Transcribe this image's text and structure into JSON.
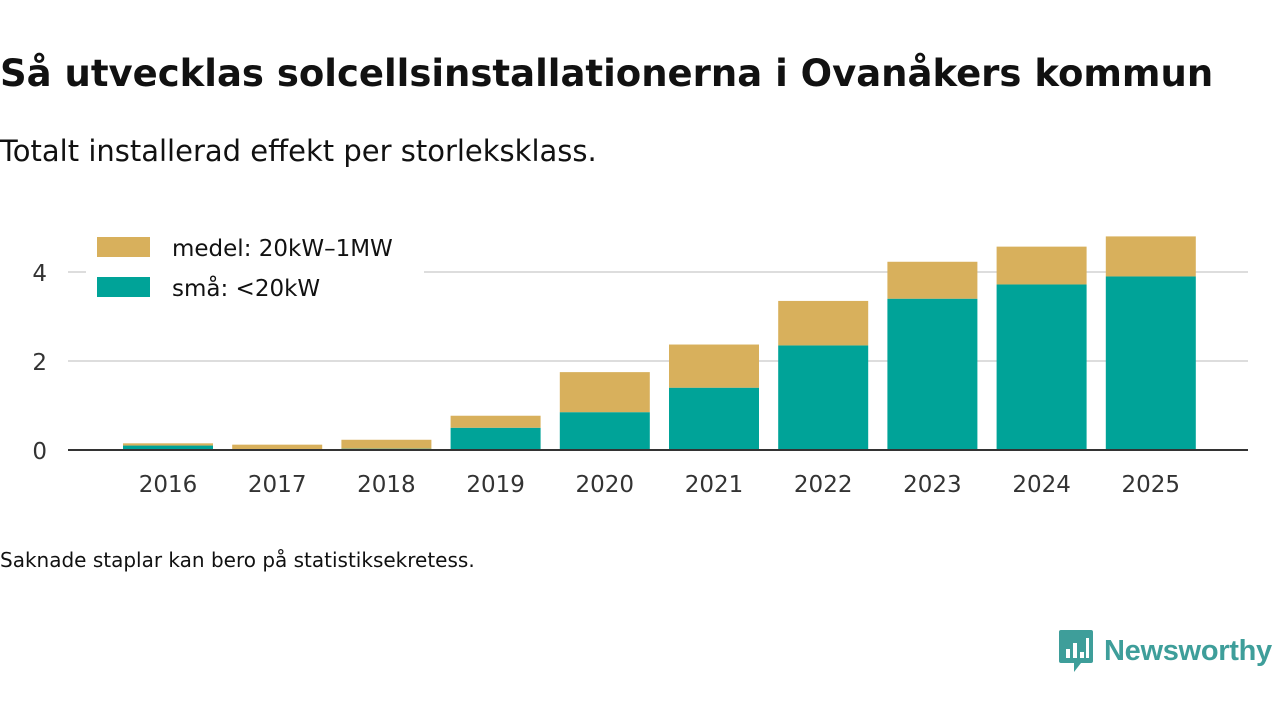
{
  "header": {
    "title": "Så utvecklas solcellsinstallationerna i Ovanåkers kommun",
    "subtitle": "Totalt installerad effekt per storleksklass."
  },
  "footer": {
    "note": "Saknade staplar kan bero på statistiksekretess.",
    "brand": "Newsworthy"
  },
  "colors": {
    "small": "#00a398",
    "medium": "#d8b05c",
    "grid": "#dddddd",
    "axis": "#333333",
    "brand": "#3e9e9a"
  },
  "chart_data": {
    "type": "bar",
    "stacked": true,
    "title": "Så utvecklas solcellsinstallationerna i Ovanåkers kommun",
    "subtitle": "Totalt installerad effekt per storleksklass.",
    "xlabel": "",
    "ylabel": "",
    "ylim": [
      0,
      5
    ],
    "yticks": [
      0,
      2,
      4
    ],
    "grid": true,
    "legend_position": "top-left",
    "categories": [
      "2016",
      "2017",
      "2018",
      "2019",
      "2020",
      "2021",
      "2022",
      "2023",
      "2024",
      "2025"
    ],
    "series": [
      {
        "name": "små: <20kW",
        "color": "#00a398",
        "values": [
          0.1,
          0.02,
          0.03,
          0.5,
          0.85,
          1.4,
          2.35,
          3.4,
          3.72,
          3.9
        ]
      },
      {
        "name": "medel: 20kW–1MW",
        "color": "#d8b05c",
        "values": [
          0.05,
          0.1,
          0.2,
          0.27,
          0.9,
          0.97,
          1.0,
          0.83,
          0.85,
          0.9
        ]
      }
    ],
    "legend_order": [
      1,
      0
    ]
  }
}
